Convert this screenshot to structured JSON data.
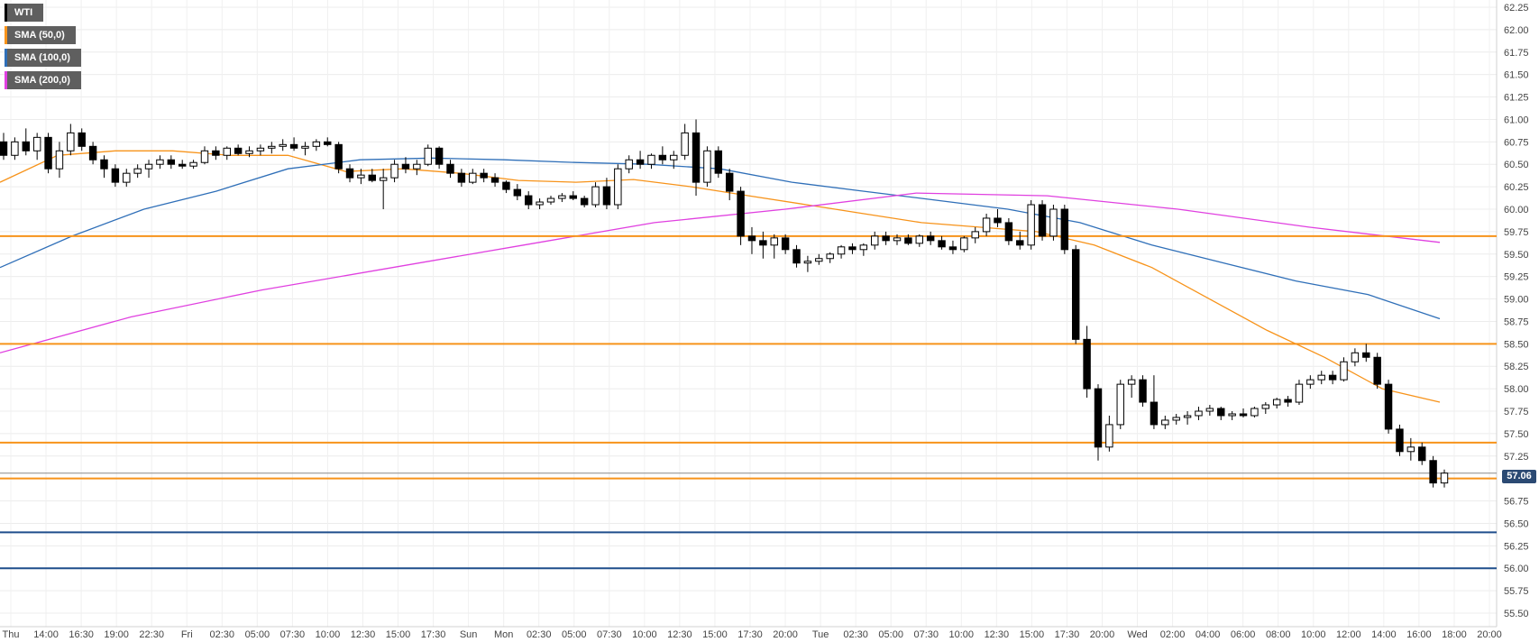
{
  "legend": [
    {
      "label": "WTI",
      "color": "#000000"
    },
    {
      "label": "SMA (50,0)",
      "color": "#f7931a"
    },
    {
      "label": "SMA (100,0)",
      "color": "#2f6fb8"
    },
    {
      "label": "SMA (200,0)",
      "color": "#e040e0"
    }
  ],
  "current_price_label": "57.06",
  "colors": {
    "up_candle": "#ffffff",
    "down_candle": "#000000",
    "level_orange": "#f7931a",
    "level_blue": "#1f4e8c",
    "sma50": "#f7931a",
    "sma100": "#2f6fb8",
    "sma200": "#e040e0",
    "badge": "#2b4a73"
  },
  "chart_data": {
    "type": "candlestick",
    "instrument": "WTI",
    "ylim": [
      55.5,
      62.25
    ],
    "y_ticks": [
      "62.25",
      "62.00",
      "61.75",
      "61.50",
      "61.25",
      "61.00",
      "60.75",
      "60.50",
      "60.25",
      "60.00",
      "59.75",
      "59.50",
      "59.25",
      "59.00",
      "58.75",
      "58.50",
      "58.25",
      "58.00",
      "57.75",
      "57.50",
      "57.25",
      "57.00",
      "56.75",
      "56.50",
      "56.25",
      "56.00",
      "55.75",
      "55.50"
    ],
    "x_ticks": [
      "Thu",
      "14:00",
      "16:30",
      "19:00",
      "22:30",
      "Fri",
      "02:30",
      "05:00",
      "07:30",
      "10:00",
      "12:30",
      "15:00",
      "17:30",
      "Sun",
      "Mon",
      "02:30",
      "05:00",
      "07:30",
      "10:00",
      "12:30",
      "15:00",
      "17:30",
      "20:00",
      "Tue",
      "02:30",
      "05:00",
      "07:30",
      "10:00",
      "12:30",
      "15:00",
      "17:30",
      "20:00",
      "Wed",
      "02:00",
      "04:00",
      "06:00",
      "08:00",
      "10:00",
      "12:00",
      "14:00",
      "16:00",
      "18:00",
      "20:00"
    ],
    "grid": true,
    "legend_position": "top-left",
    "horizontal_levels": [
      {
        "value": 59.7,
        "color": "orange"
      },
      {
        "value": 58.5,
        "color": "orange"
      },
      {
        "value": 57.4,
        "color": "orange"
      },
      {
        "value": 57.0,
        "color": "orange"
      },
      {
        "value": 56.4,
        "color": "blue"
      },
      {
        "value": 56.0,
        "color": "blue"
      }
    ],
    "current_price": 57.06,
    "sma_series": [
      {
        "name": "SMA (50,0)",
        "values": [
          60.3,
          60.6,
          60.65,
          60.65,
          60.6,
          60.6,
          60.42,
          60.45,
          60.4,
          60.32,
          60.3,
          60.33,
          60.25,
          60.15,
          60.05,
          59.95,
          59.85,
          59.8,
          59.75,
          59.6,
          59.35,
          59.0,
          58.65,
          58.35,
          58.0,
          57.85
        ]
      },
      {
        "name": "SMA (100,0)",
        "values": [
          59.35,
          59.7,
          60.0,
          60.2,
          60.45,
          60.55,
          60.57,
          60.55,
          60.52,
          60.5,
          60.45,
          60.3,
          60.2,
          60.1,
          60.0,
          59.85,
          59.6,
          59.4,
          59.2,
          59.05,
          58.78
        ]
      },
      {
        "name": "SMA (200,0)",
        "values": [
          58.4,
          58.8,
          59.1,
          59.35,
          59.6,
          59.85,
          60.0,
          60.18,
          60.15,
          60.0,
          59.8,
          59.63
        ]
      }
    ],
    "candles": [
      [
        60.75,
        60.85,
        60.55,
        60.6
      ],
      [
        60.6,
        60.8,
        60.55,
        60.75
      ],
      [
        60.75,
        60.9,
        60.6,
        60.65
      ],
      [
        60.65,
        60.85,
        60.55,
        60.8
      ],
      [
        60.8,
        60.85,
        60.4,
        60.45
      ],
      [
        60.45,
        60.75,
        60.35,
        60.65
      ],
      [
        60.65,
        60.95,
        60.6,
        60.85
      ],
      [
        60.85,
        60.9,
        60.65,
        60.7
      ],
      [
        60.7,
        60.75,
        60.5,
        60.55
      ],
      [
        60.55,
        60.6,
        60.35,
        60.45
      ],
      [
        60.45,
        60.5,
        60.25,
        60.3
      ],
      [
        60.3,
        60.45,
        60.25,
        60.4
      ],
      [
        60.4,
        60.5,
        60.35,
        60.45
      ],
      [
        60.45,
        60.55,
        60.35,
        60.5
      ],
      [
        60.5,
        60.6,
        60.45,
        60.55
      ],
      [
        60.55,
        60.6,
        60.45,
        60.5
      ],
      [
        60.5,
        60.55,
        60.45,
        60.48
      ],
      [
        60.48,
        60.55,
        60.45,
        60.52
      ],
      [
        60.52,
        60.7,
        60.5,
        60.65
      ],
      [
        60.65,
        60.7,
        60.55,
        60.6
      ],
      [
        60.6,
        60.7,
        60.55,
        60.68
      ],
      [
        60.68,
        60.72,
        60.6,
        60.62
      ],
      [
        60.62,
        60.7,
        60.58,
        60.65
      ],
      [
        60.65,
        60.72,
        60.6,
        60.68
      ],
      [
        60.68,
        60.75,
        60.62,
        60.7
      ],
      [
        60.7,
        60.78,
        60.65,
        60.72
      ],
      [
        60.72,
        60.8,
        60.65,
        60.68
      ],
      [
        60.68,
        60.75,
        60.6,
        60.7
      ],
      [
        60.7,
        60.78,
        60.65,
        60.75
      ],
      [
        60.75,
        60.8,
        60.7,
        60.72
      ],
      [
        60.72,
        60.75,
        60.4,
        60.45
      ],
      [
        60.45,
        60.5,
        60.3,
        60.35
      ],
      [
        60.35,
        60.45,
        60.28,
        60.38
      ],
      [
        60.38,
        60.45,
        60.3,
        60.32
      ],
      [
        60.32,
        60.45,
        60.0,
        60.35
      ],
      [
        60.35,
        60.55,
        60.3,
        60.5
      ],
      [
        60.5,
        60.58,
        60.4,
        60.45
      ],
      [
        60.45,
        60.55,
        60.38,
        60.5
      ],
      [
        60.5,
        60.72,
        60.48,
        60.68
      ],
      [
        60.68,
        60.7,
        60.45,
        60.5
      ],
      [
        60.5,
        60.55,
        60.35,
        60.4
      ],
      [
        60.4,
        60.45,
        60.25,
        60.3
      ],
      [
        60.3,
        60.45,
        60.28,
        60.4
      ],
      [
        60.4,
        60.45,
        60.3,
        60.35
      ],
      [
        60.35,
        60.4,
        60.25,
        60.3
      ],
      [
        60.3,
        60.32,
        60.18,
        60.22
      ],
      [
        60.22,
        60.28,
        60.1,
        60.15
      ],
      [
        60.15,
        60.2,
        60.0,
        60.05
      ],
      [
        60.05,
        60.12,
        60.0,
        60.08
      ],
      [
        60.08,
        60.15,
        60.05,
        60.12
      ],
      [
        60.12,
        60.18,
        60.08,
        60.15
      ],
      [
        60.15,
        60.2,
        60.1,
        60.12
      ],
      [
        60.12,
        60.15,
        60.02,
        60.05
      ],
      [
        60.05,
        60.3,
        60.02,
        60.25
      ],
      [
        60.25,
        60.35,
        60.0,
        60.05
      ],
      [
        60.05,
        60.5,
        60.0,
        60.45
      ],
      [
        60.45,
        60.6,
        60.4,
        60.55
      ],
      [
        60.55,
        60.65,
        60.45,
        60.5
      ],
      [
        60.5,
        60.62,
        60.45,
        60.6
      ],
      [
        60.6,
        60.7,
        60.5,
        60.55
      ],
      [
        60.55,
        60.65,
        60.45,
        60.6
      ],
      [
        60.6,
        60.95,
        60.55,
        60.85
      ],
      [
        60.85,
        61.0,
        60.15,
        60.3
      ],
      [
        60.3,
        60.7,
        60.25,
        60.65
      ],
      [
        60.65,
        60.7,
        60.35,
        60.4
      ],
      [
        60.4,
        60.45,
        60.1,
        60.2
      ],
      [
        60.2,
        60.25,
        59.6,
        59.7
      ],
      [
        59.7,
        59.8,
        59.5,
        59.65
      ],
      [
        59.65,
        59.75,
        59.45,
        59.6
      ],
      [
        59.6,
        59.72,
        59.45,
        59.68
      ],
      [
        59.68,
        59.72,
        59.5,
        59.55
      ],
      [
        59.55,
        59.6,
        59.35,
        59.4
      ],
      [
        59.4,
        59.48,
        59.3,
        59.42
      ],
      [
        59.42,
        59.5,
        59.38,
        59.45
      ],
      [
        59.45,
        59.52,
        59.4,
        59.5
      ],
      [
        59.5,
        59.6,
        59.45,
        59.58
      ],
      [
        59.58,
        59.62,
        59.5,
        59.55
      ],
      [
        59.55,
        59.62,
        59.48,
        59.6
      ],
      [
        59.6,
        59.75,
        59.55,
        59.7
      ],
      [
        59.7,
        59.75,
        59.6,
        59.65
      ],
      [
        59.65,
        59.72,
        59.6,
        59.68
      ],
      [
        59.68,
        59.72,
        59.6,
        59.62
      ],
      [
        59.62,
        59.72,
        59.58,
        59.7
      ],
      [
        59.7,
        59.75,
        59.6,
        59.65
      ],
      [
        59.65,
        59.7,
        59.55,
        59.58
      ],
      [
        59.58,
        59.65,
        59.5,
        59.55
      ],
      [
        59.55,
        59.7,
        59.52,
        59.68
      ],
      [
        59.68,
        59.8,
        59.62,
        59.75
      ],
      [
        59.75,
        59.95,
        59.7,
        59.9
      ],
      [
        59.9,
        60.0,
        59.8,
        59.85
      ],
      [
        59.85,
        59.9,
        59.6,
        59.65
      ],
      [
        59.65,
        59.75,
        59.55,
        59.6
      ],
      [
        59.6,
        60.1,
        59.55,
        60.05
      ],
      [
        60.05,
        60.1,
        59.65,
        59.7
      ],
      [
        59.7,
        60.05,
        59.65,
        60.0
      ],
      [
        60.0,
        60.05,
        59.5,
        59.55
      ],
      [
        59.55,
        59.6,
        58.5,
        58.55
      ],
      [
        58.55,
        58.7,
        57.9,
        58.0
      ],
      [
        58.0,
        58.05,
        57.2,
        57.35
      ],
      [
        57.35,
        57.7,
        57.3,
        57.6
      ],
      [
        57.6,
        58.1,
        57.55,
        58.05
      ],
      [
        58.05,
        58.15,
        57.9,
        58.1
      ],
      [
        58.1,
        58.15,
        57.8,
        57.85
      ],
      [
        57.85,
        58.15,
        57.55,
        57.6
      ],
      [
        57.6,
        57.7,
        57.55,
        57.65
      ],
      [
        57.65,
        57.72,
        57.6,
        57.68
      ],
      [
        57.68,
        57.75,
        57.6,
        57.7
      ],
      [
        57.7,
        57.8,
        57.65,
        57.75
      ],
      [
        57.75,
        57.82,
        57.7,
        57.78
      ],
      [
        57.78,
        57.8,
        57.65,
        57.7
      ],
      [
        57.7,
        57.75,
        57.65,
        57.72
      ],
      [
        57.72,
        57.78,
        57.68,
        57.7
      ],
      [
        57.7,
        57.8,
        57.68,
        57.78
      ],
      [
        57.78,
        57.85,
        57.72,
        57.82
      ],
      [
        57.82,
        57.9,
        57.78,
        57.88
      ],
      [
        57.88,
        57.92,
        57.8,
        57.85
      ],
      [
        57.85,
        58.1,
        57.82,
        58.05
      ],
      [
        58.05,
        58.15,
        58.0,
        58.1
      ],
      [
        58.1,
        58.2,
        58.05,
        58.15
      ],
      [
        58.15,
        58.2,
        58.05,
        58.1
      ],
      [
        58.1,
        58.35,
        58.08,
        58.3
      ],
      [
        58.3,
        58.45,
        58.25,
        58.4
      ],
      [
        58.4,
        58.5,
        58.3,
        58.35
      ],
      [
        58.35,
        58.4,
        58.0,
        58.05
      ],
      [
        58.05,
        58.1,
        57.5,
        57.55
      ],
      [
        57.55,
        57.6,
        57.25,
        57.3
      ],
      [
        57.3,
        57.45,
        57.2,
        57.35
      ],
      [
        57.35,
        57.4,
        57.15,
        57.2
      ],
      [
        57.2,
        57.25,
        56.9,
        56.95
      ],
      [
        56.95,
        57.1,
        56.9,
        57.06
      ]
    ]
  }
}
